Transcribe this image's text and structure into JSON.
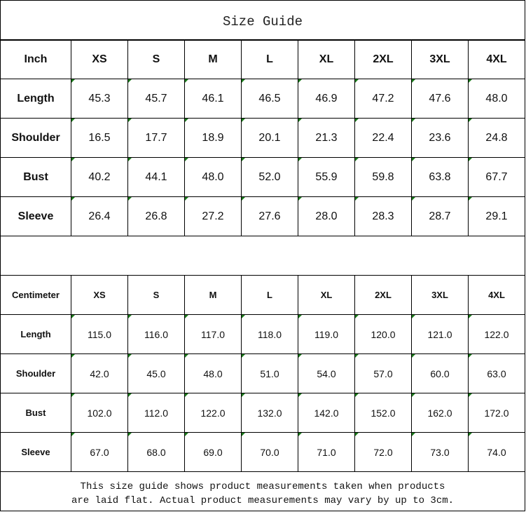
{
  "title": "Size Guide",
  "inch_table": {
    "header": [
      "Inch",
      "XS",
      "S",
      "M",
      "L",
      "XL",
      "2XL",
      "3XL",
      "4XL"
    ],
    "rows": [
      {
        "label": "Length",
        "values": [
          "45.3",
          "45.7",
          "46.1",
          "46.5",
          "46.9",
          "47.2",
          "47.6",
          "48.0"
        ]
      },
      {
        "label": "Shoulder",
        "values": [
          "16.5",
          "17.7",
          "18.9",
          "20.1",
          "21.3",
          "22.4",
          "23.6",
          "24.8"
        ]
      },
      {
        "label": "Bust",
        "values": [
          "40.2",
          "44.1",
          "48.0",
          "52.0",
          "55.9",
          "59.8",
          "63.8",
          "67.7"
        ]
      },
      {
        "label": "Sleeve",
        "values": [
          "26.4",
          "26.8",
          "27.2",
          "27.6",
          "28.0",
          "28.3",
          "28.7",
          "29.1"
        ]
      }
    ]
  },
  "cm_table": {
    "header": [
      "Centimeter",
      "XS",
      "S",
      "M",
      "L",
      "XL",
      "2XL",
      "3XL",
      "4XL"
    ],
    "rows": [
      {
        "label": "Length",
        "values": [
          "115.0",
          "116.0",
          "117.0",
          "118.0",
          "119.0",
          "120.0",
          "121.0",
          "122.0"
        ]
      },
      {
        "label": "Shoulder",
        "values": [
          "42.0",
          "45.0",
          "48.0",
          "51.0",
          "54.0",
          "57.0",
          "60.0",
          "63.0"
        ]
      },
      {
        "label": "Bust",
        "values": [
          "102.0",
          "112.0",
          "122.0",
          "132.0",
          "142.0",
          "152.0",
          "162.0",
          "172.0"
        ]
      },
      {
        "label": "Sleeve",
        "values": [
          "67.0",
          "68.0",
          "69.0",
          "70.0",
          "71.0",
          "72.0",
          "73.0",
          "74.0"
        ]
      }
    ]
  },
  "footer": {
    "line1": "This size guide shows product measurements taken when products",
    "line2": "are laid flat. Actual product measurements may vary by up to 3cm."
  },
  "colors": {
    "error_indicator": "#1a7a1a"
  }
}
